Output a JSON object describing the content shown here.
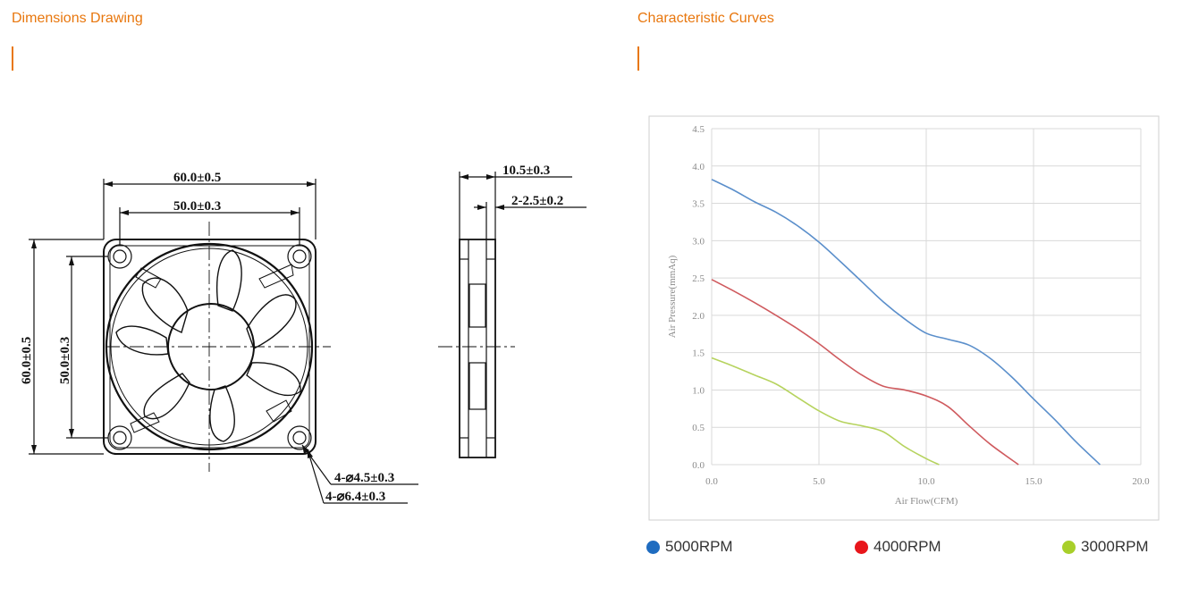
{
  "sections": {
    "dimensions": {
      "title": "Dimensions Drawing"
    },
    "curves": {
      "title": "Characteristic Curves"
    }
  },
  "dimensions": {
    "front_width_outer": "60.0±0.5",
    "front_width_holes": "50.0±0.3",
    "front_height_outer": "60.0±0.5",
    "front_height_holes": "50.0±0.3",
    "side_thickness": "10.5±0.3",
    "side_flange": "2-2.5±0.2",
    "hole_small": "4-⌀4.5±0.3",
    "hole_large": "4-⌀6.4±0.3"
  },
  "colors": {
    "accent": "#e8770e",
    "line_5000": "#5b8fcb",
    "line_4000": "#cf5a5e",
    "line_3000": "#b6d35e",
    "dot_5000": "#1f6cc0",
    "dot_4000": "#e8161b",
    "dot_3000": "#a8cf2a"
  },
  "chart_data": {
    "type": "line",
    "title": "",
    "xlabel": "Air Flow(CFM)",
    "ylabel": "Air Pressure(mmAq)",
    "xlim": [
      0,
      20
    ],
    "ylim": [
      0,
      4.5
    ],
    "x_ticks": [
      "0.0",
      "5.0",
      "10.0",
      "15.0",
      "20.0"
    ],
    "y_ticks": [
      "0.0",
      "0.5",
      "1.0",
      "1.5",
      "2.0",
      "2.5",
      "3.0",
      "3.5",
      "4.0",
      "4.5"
    ],
    "grid": true,
    "legend_position": "bottom",
    "series": [
      {
        "name": "5000RPM",
        "x": [
          0,
          1,
          2,
          3,
          4,
          5,
          6,
          7,
          8,
          9,
          10,
          11,
          12,
          13,
          14,
          15,
          16,
          17,
          18.1
        ],
        "y": [
          3.82,
          3.68,
          3.52,
          3.38,
          3.2,
          2.98,
          2.72,
          2.45,
          2.18,
          1.95,
          1.76,
          1.68,
          1.6,
          1.42,
          1.17,
          0.88,
          0.6,
          0.3,
          0
        ]
      },
      {
        "name": "4000RPM",
        "x": [
          0,
          1,
          2,
          3,
          4,
          5,
          6,
          7,
          8,
          9,
          10,
          11,
          12,
          13,
          14.3
        ],
        "y": [
          2.48,
          2.33,
          2.17,
          2.0,
          1.82,
          1.62,
          1.4,
          1.2,
          1.05,
          1.0,
          0.92,
          0.78,
          0.52,
          0.27,
          0
        ]
      },
      {
        "name": "3000RPM",
        "x": [
          0,
          1,
          2,
          3,
          4,
          5,
          6,
          7,
          8,
          9,
          10,
          10.6
        ],
        "y": [
          1.43,
          1.32,
          1.2,
          1.08,
          0.9,
          0.72,
          0.58,
          0.52,
          0.44,
          0.24,
          0.08,
          0
        ]
      }
    ]
  }
}
